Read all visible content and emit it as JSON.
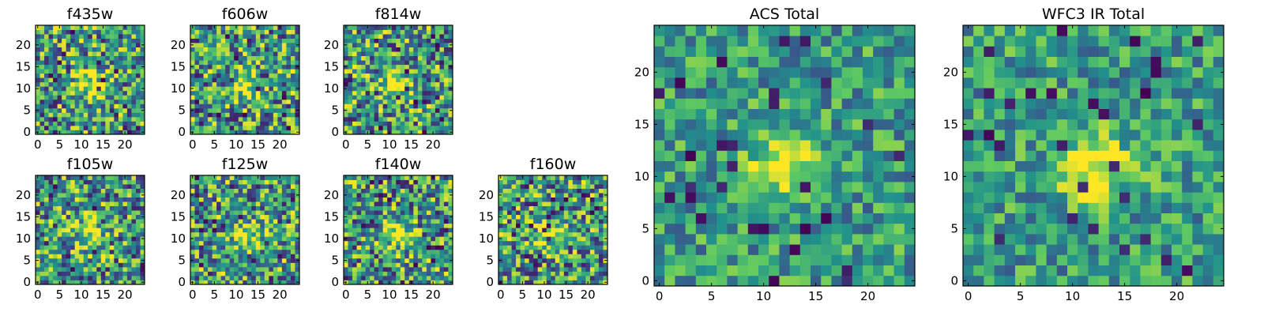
{
  "chart_data": [
    {
      "type": "heatmap",
      "title": "f435w",
      "xlim": [
        0,
        24
      ],
      "ylim": [
        0,
        24
      ],
      "xticks": [
        "0",
        "5",
        "10",
        "15",
        "20"
      ],
      "yticks": [
        "0",
        "5",
        "10",
        "15",
        "20"
      ],
      "grid_size": [
        25,
        25
      ],
      "values": null,
      "description_of_values": "random 25x25 pixel noise, colormap viridis"
    },
    {
      "type": "heatmap",
      "title": "f606w",
      "xlim": [
        0,
        24
      ],
      "ylim": [
        0,
        24
      ],
      "xticks": [
        "0",
        "5",
        "10",
        "15",
        "20"
      ],
      "yticks": [
        "0",
        "5",
        "10",
        "15",
        "20"
      ],
      "grid_size": [
        25,
        25
      ]
    },
    {
      "type": "heatmap",
      "title": "f814w",
      "xlim": [
        0,
        24
      ],
      "ylim": [
        0,
        24
      ],
      "xticks": [
        "0",
        "5",
        "10",
        "15",
        "20"
      ],
      "yticks": [
        "0",
        "5",
        "10",
        "15",
        "20"
      ],
      "grid_size": [
        25,
        25
      ]
    },
    {
      "type": "heatmap",
      "title": "f105w",
      "xlim": [
        0,
        24
      ],
      "ylim": [
        0,
        24
      ],
      "xticks": [
        "0",
        "5",
        "10",
        "15",
        "20"
      ],
      "yticks": [
        "0",
        "5",
        "10",
        "15",
        "20"
      ],
      "grid_size": [
        25,
        25
      ]
    },
    {
      "type": "heatmap",
      "title": "f125w",
      "xlim": [
        0,
        24
      ],
      "ylim": [
        0,
        24
      ],
      "xticks": [
        "0",
        "5",
        "10",
        "15",
        "20"
      ],
      "yticks": [
        "0",
        "5",
        "10",
        "15",
        "20"
      ],
      "grid_size": [
        25,
        25
      ]
    },
    {
      "type": "heatmap",
      "title": "f140w",
      "xlim": [
        0,
        24
      ],
      "ylim": [
        0,
        24
      ],
      "xticks": [
        "0",
        "5",
        "10",
        "15",
        "20"
      ],
      "yticks": [
        "0",
        "5",
        "10",
        "15",
        "20"
      ],
      "grid_size": [
        25,
        25
      ]
    },
    {
      "type": "heatmap",
      "title": "f160w",
      "xlim": [
        0,
        24
      ],
      "ylim": [
        0,
        24
      ],
      "xticks": [
        "0",
        "5",
        "10",
        "15",
        "20"
      ],
      "yticks": [
        "0",
        "5",
        "10",
        "15",
        "20"
      ],
      "grid_size": [
        25,
        25
      ]
    },
    {
      "type": "heatmap",
      "title": "ACS Total",
      "xlim": [
        0,
        24
      ],
      "ylim": [
        0,
        24
      ],
      "xticks": [
        "0",
        "5",
        "10",
        "15",
        "20"
      ],
      "yticks": [
        "0",
        "5",
        "10",
        "15",
        "20"
      ],
      "grid_size": [
        25,
        25
      ]
    },
    {
      "type": "heatmap",
      "title": "WFC3 IR Total",
      "xlim": [
        0,
        24
      ],
      "ylim": [
        0,
        24
      ],
      "xticks": [
        "0",
        "5",
        "10",
        "15",
        "20"
      ],
      "yticks": [
        "0",
        "5",
        "10",
        "15",
        "20"
      ],
      "grid_size": [
        25,
        25
      ]
    }
  ],
  "colormap": [
    "#440154",
    "#3b528b",
    "#21918c",
    "#5ec962",
    "#fde725"
  ]
}
